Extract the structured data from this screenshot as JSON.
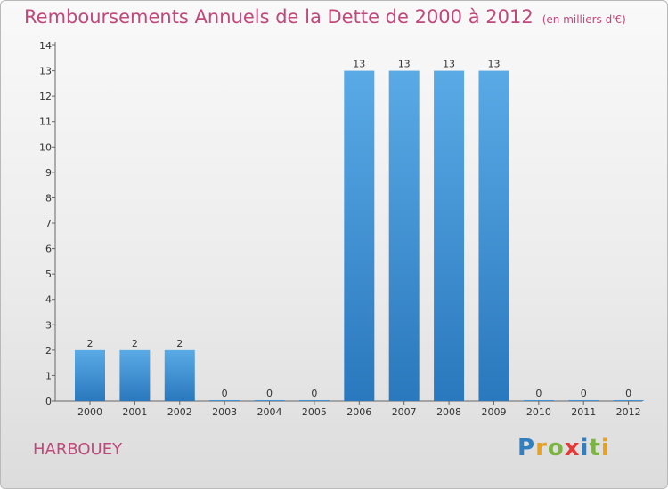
{
  "header": {
    "title": "Remboursements Annuels de la Dette de 2000 à 2012",
    "unit": "(en milliers d'€)"
  },
  "footer": {
    "commune": "HARBOUEY",
    "logo_text": "Proxiti",
    "logo_colors": [
      "#2f7fc1",
      "#e8a21b",
      "#7cb342",
      "#e53935",
      "#2f7fc1",
      "#7cb342",
      "#e8a21b"
    ]
  },
  "chart_data": {
    "type": "bar",
    "categories": [
      "2000",
      "2001",
      "2002",
      "2003",
      "2004",
      "2005",
      "2006",
      "2007",
      "2008",
      "2009",
      "2010",
      "2011",
      "2012"
    ],
    "values": [
      2,
      2,
      2,
      0,
      0,
      0,
      13,
      13,
      13,
      13,
      0,
      0,
      0
    ],
    "value_labels": [
      "2",
      "2",
      "2",
      "0",
      "0",
      "0",
      "13",
      "13",
      "13",
      "13",
      "0",
      "0",
      "0"
    ],
    "ylim": [
      0,
      14
    ],
    "yticks": [
      "0",
      "1",
      "2",
      "3",
      "4",
      "5",
      "6",
      "7",
      "8",
      "9",
      "10",
      "11",
      "12",
      "13",
      "14"
    ],
    "grid": false,
    "bar_color": "#3a8fd4"
  }
}
